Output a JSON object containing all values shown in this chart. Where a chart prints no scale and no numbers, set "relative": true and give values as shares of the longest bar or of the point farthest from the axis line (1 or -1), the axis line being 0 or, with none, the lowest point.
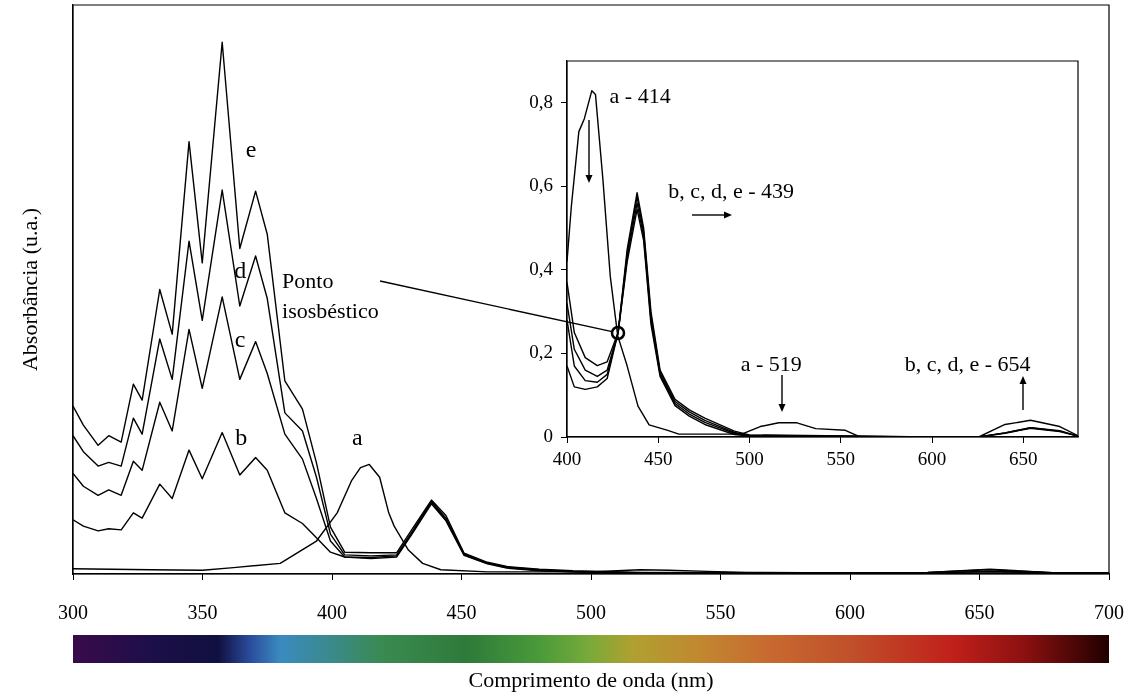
{
  "chart_data": [
    {
      "type": "line",
      "xlabel": "Comprimento de onda (nm)",
      "ylabel": "Absorbância (u.a.)",
      "relative": true,
      "xlim": [
        300,
        700
      ],
      "xticks": [
        300,
        350,
        400,
        450,
        500,
        550,
        600,
        650,
        700
      ],
      "grid": false,
      "legend": false,
      "marker": "none",
      "line_style": "solid",
      "series": [
        {
          "name": "a",
          "color": "#000000",
          "x": [
            300,
            330,
            350,
            362,
            380,
            394,
            402,
            407.5,
            411,
            414.4,
            418.4,
            421.9,
            424,
            429.5,
            435,
            442,
            460,
            500,
            510,
            519,
            530,
            545,
            560,
            600,
            700
          ],
          "values": [
            0.01,
            0.008,
            0.007,
            0.012,
            0.02,
            0.062,
            0.115,
            0.175,
            0.2,
            0.206,
            0.182,
            0.115,
            0.09,
            0.045,
            0.02,
            0.008,
            0.004,
            0.004,
            0.006,
            0.008,
            0.007,
            0.005,
            0.003,
            0.002,
            0.002
          ]
        },
        {
          "name": "b",
          "color": "#000000",
          "x": [
            300,
            304,
            309.7,
            313.8,
            318.6,
            323.3,
            326.7,
            333.5,
            338.3,
            344.8,
            349.9,
            357.6,
            364.4,
            370.5,
            375,
            381.8,
            388.6,
            394,
            399.4,
            404.9,
            415,
            425,
            431,
            438.4,
            444,
            451,
            460,
            467.5,
            480,
            493,
            520,
            600,
            630,
            654,
            680,
            700
          ],
          "values": [
            0.102,
            0.09,
            0.081,
            0.085,
            0.083,
            0.115,
            0.105,
            0.169,
            0.142,
            0.233,
            0.179,
            0.266,
            0.186,
            0.219,
            0.195,
            0.115,
            0.095,
            0.068,
            0.041,
            0.032,
            0.029,
            0.032,
            0.076,
            0.132,
            0.1,
            0.035,
            0.019,
            0.011,
            0.006,
            0.004,
            0.002,
            0.002,
            0.002,
            0.005,
            0.002,
            0.002
          ]
        },
        {
          "name": "c",
          "color": "#000000",
          "x": [
            300,
            304,
            309.7,
            313.8,
            318.6,
            323.3,
            326.7,
            333.5,
            338.3,
            344.8,
            349.9,
            357.6,
            364.4,
            370.5,
            375,
            381.8,
            388.6,
            394,
            399.4,
            404.9,
            415,
            425,
            431,
            438.4,
            444,
            451,
            460,
            467.5,
            480,
            493,
            520,
            600,
            630,
            654,
            680,
            700
          ],
          "values": [
            0.189,
            0.165,
            0.148,
            0.158,
            0.148,
            0.212,
            0.195,
            0.323,
            0.269,
            0.46,
            0.349,
            0.521,
            0.366,
            0.437,
            0.377,
            0.263,
            0.216,
            0.142,
            0.062,
            0.032,
            0.031,
            0.034,
            0.078,
            0.135,
            0.102,
            0.036,
            0.02,
            0.012,
            0.007,
            0.004,
            0.002,
            0.002,
            0.002,
            0.005,
            0.002,
            0.002
          ]
        },
        {
          "name": "d",
          "color": "#000000",
          "x": [
            300,
            304,
            309.7,
            313.8,
            318.6,
            323.3,
            326.7,
            333.5,
            338.3,
            344.8,
            349.9,
            357.6,
            364.4,
            370.5,
            375,
            381.8,
            388.6,
            394,
            399.4,
            404.9,
            415,
            425,
            431,
            438.4,
            444,
            451,
            460,
            467.5,
            480,
            493,
            520,
            600,
            630,
            654,
            680,
            700
          ],
          "values": [
            0.26,
            0.23,
            0.203,
            0.21,
            0.203,
            0.293,
            0.263,
            0.442,
            0.366,
            0.626,
            0.477,
            0.722,
            0.504,
            0.598,
            0.518,
            0.303,
            0.269,
            0.182,
            0.075,
            0.036,
            0.034,
            0.036,
            0.08,
            0.137,
            0.105,
            0.038,
            0.021,
            0.013,
            0.008,
            0.005,
            0.002,
            0.002,
            0.003,
            0.008,
            0.002,
            0.002
          ]
        },
        {
          "name": "e",
          "color": "#000000",
          "x": [
            300,
            304,
            309.7,
            313.8,
            318.6,
            323.3,
            326.7,
            333.5,
            338.3,
            344.8,
            349.9,
            357.6,
            364.4,
            370.5,
            375,
            381.8,
            388.6,
            394,
            399.4,
            404.9,
            415,
            425,
            431,
            438.4,
            444,
            451,
            460,
            467.5,
            480,
            493,
            520,
            600,
            630,
            654,
            680,
            700
          ],
          "values": [
            0.316,
            0.28,
            0.242,
            0.26,
            0.248,
            0.357,
            0.327,
            0.535,
            0.451,
            0.813,
            0.585,
            1.0,
            0.612,
            0.72,
            0.639,
            0.363,
            0.31,
            0.209,
            0.088,
            0.041,
            0.04,
            0.04,
            0.085,
            0.139,
            0.11,
            0.039,
            0.022,
            0.014,
            0.009,
            0.006,
            0.003,
            0.002,
            0.003,
            0.009,
            0.002,
            0.002
          ]
        }
      ]
    },
    {
      "type": "line",
      "xlim": [
        400,
        680
      ],
      "xticks": [
        400,
        450,
        500,
        550,
        600,
        650
      ],
      "ylim": [
        0,
        0.9
      ],
      "yticks": [
        0,
        {
          "value": 0.2,
          "label": "0,2"
        },
        {
          "value": 0.4,
          "label": "0,4"
        },
        {
          "value": 0.6,
          "label": "0,6"
        },
        {
          "value": 0.8,
          "label": "0,8"
        }
      ],
      "grid": false,
      "legend": false,
      "marker": "none",
      "line_style": "solid",
      "annotations": [
        {
          "text": "a - 414",
          "x": 414,
          "y": 0.83
        },
        {
          "text": "b, c, d, e - 439",
          "x": 439,
          "y": 0.585
        },
        {
          "text": "a - 519",
          "x": 519,
          "y": 0.034
        },
        {
          "text": "b, c, d, e - 654",
          "x": 654,
          "y": 0.04
        },
        {
          "text": "Ponto isosbéstico",
          "x": 428,
          "y": 0.25
        }
      ],
      "series": [
        {
          "color": "#000000",
          "x": [
            400,
            402.4,
            406.5,
            409.5,
            413.6,
            415.6,
            419.7,
            423.7,
            427.8,
            432.9,
            438.9,
            445,
            455.2,
            461.3,
            495.7,
            505.9,
            516,
            526,
            536.3,
            552.5,
            560.6,
            680
          ],
          "values": [
            0.42,
            0.553,
            0.731,
            0.762,
            0.829,
            0.82,
            0.615,
            0.385,
            0.242,
            0.171,
            0.074,
            0.029,
            0.016,
            0.007,
            0.007,
            0.025,
            0.034,
            0.034,
            0.02,
            0.016,
            0,
            0
          ]
        },
        {
          "color": "#000000",
          "x": [
            400,
            404,
            410,
            416.6,
            422,
            428,
            433,
            438.4,
            442,
            446,
            451,
            459.2,
            467,
            475.5,
            491.7,
            500,
            600,
            625.6,
            640,
            654,
            670,
            680
          ],
          "values": [
            0.17,
            0.12,
            0.114,
            0.12,
            0.14,
            0.25,
            0.42,
            0.545,
            0.47,
            0.27,
            0.145,
            0.075,
            0.05,
            0.03,
            0.006,
            0.002,
            0,
            0,
            0.009,
            0.021,
            0.013,
            0.002
          ]
        },
        {
          "color": "#000000",
          "x": [
            400,
            404,
            410,
            416.6,
            422,
            428,
            433,
            438.4,
            442,
            446,
            451,
            459.2,
            467,
            475.5,
            491.7,
            500,
            600,
            625.6,
            640,
            654,
            670,
            680
          ],
          "values": [
            0.28,
            0.17,
            0.135,
            0.131,
            0.15,
            0.25,
            0.43,
            0.56,
            0.48,
            0.28,
            0.15,
            0.08,
            0.055,
            0.035,
            0.009,
            0.003,
            0,
            0,
            0.01,
            0.022,
            0.014,
            0.002
          ]
        },
        {
          "color": "#000000",
          "x": [
            400,
            404,
            410,
            416.6,
            422,
            428,
            433,
            438.4,
            442,
            446,
            451,
            459.2,
            467,
            475.5,
            491.7,
            500,
            600,
            625.6,
            640,
            654,
            670,
            680
          ],
          "values": [
            0.32,
            0.21,
            0.16,
            0.145,
            0.16,
            0.25,
            0.44,
            0.575,
            0.49,
            0.29,
            0.155,
            0.085,
            0.06,
            0.04,
            0.011,
            0.004,
            0,
            0,
            0.01,
            0.022,
            0.015,
            0.002
          ]
        },
        {
          "color": "#000000",
          "x": [
            400,
            404,
            410,
            416.6,
            422,
            428,
            433,
            438.4,
            442,
            446,
            451,
            459.2,
            467,
            475.5,
            491.7,
            500,
            600,
            625.6,
            640,
            654,
            670,
            680
          ],
          "values": [
            0.37,
            0.25,
            0.19,
            0.171,
            0.18,
            0.25,
            0.45,
            0.585,
            0.5,
            0.3,
            0.16,
            0.09,
            0.065,
            0.045,
            0.014,
            0.005,
            0,
            0,
            0.03,
            0.04,
            0.025,
            0.003
          ]
        }
      ]
    }
  ]
}
